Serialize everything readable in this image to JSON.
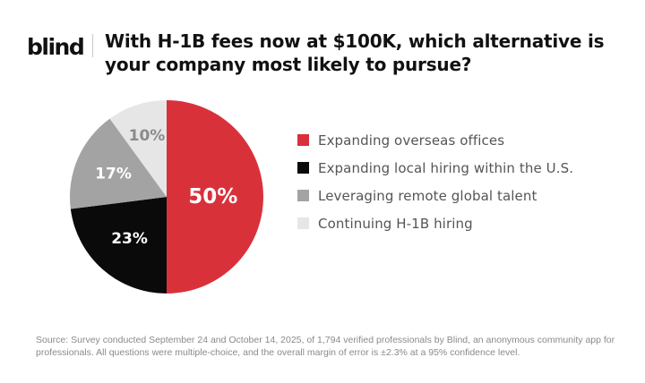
{
  "brand": {
    "logo_text": "blind"
  },
  "title": "With H-1B fees now at $100K, which alternative is your company most likely to pursue?",
  "chart_data": {
    "type": "pie",
    "title": "With H-1B fees now at $100K, which alternative is your company most likely to pursue?",
    "slices": [
      {
        "label": "Expanding overseas offices",
        "value": 50,
        "value_label": "50%",
        "color": "#d9313a",
        "text_color": "#ffffff"
      },
      {
        "label": "Expanding local hiring within the U.S.",
        "value": 23,
        "value_label": "23%",
        "color": "#0a0a0a",
        "text_color": "#ffffff"
      },
      {
        "label": "Leveraging remote global talent",
        "value": 17,
        "value_label": "17%",
        "color": "#a3a3a3",
        "text_color": "#ffffff"
      },
      {
        "label": "Continuing H-1B hiring",
        "value": 10,
        "value_label": "10%",
        "color": "#e6e6e6",
        "text_color": "#8a8a8a"
      }
    ],
    "legend_placement": "right",
    "start_angle": "12 o'clock",
    "direction": "clockwise"
  },
  "footnote": "Source: Survey conducted September 24 and October 14, 2025, of 1,794 verified professionals by Blind, an anonymous community app for professionals. All questions were multiple-choice, and the overall margin of error is ±2.3% at a 95% confidence level."
}
